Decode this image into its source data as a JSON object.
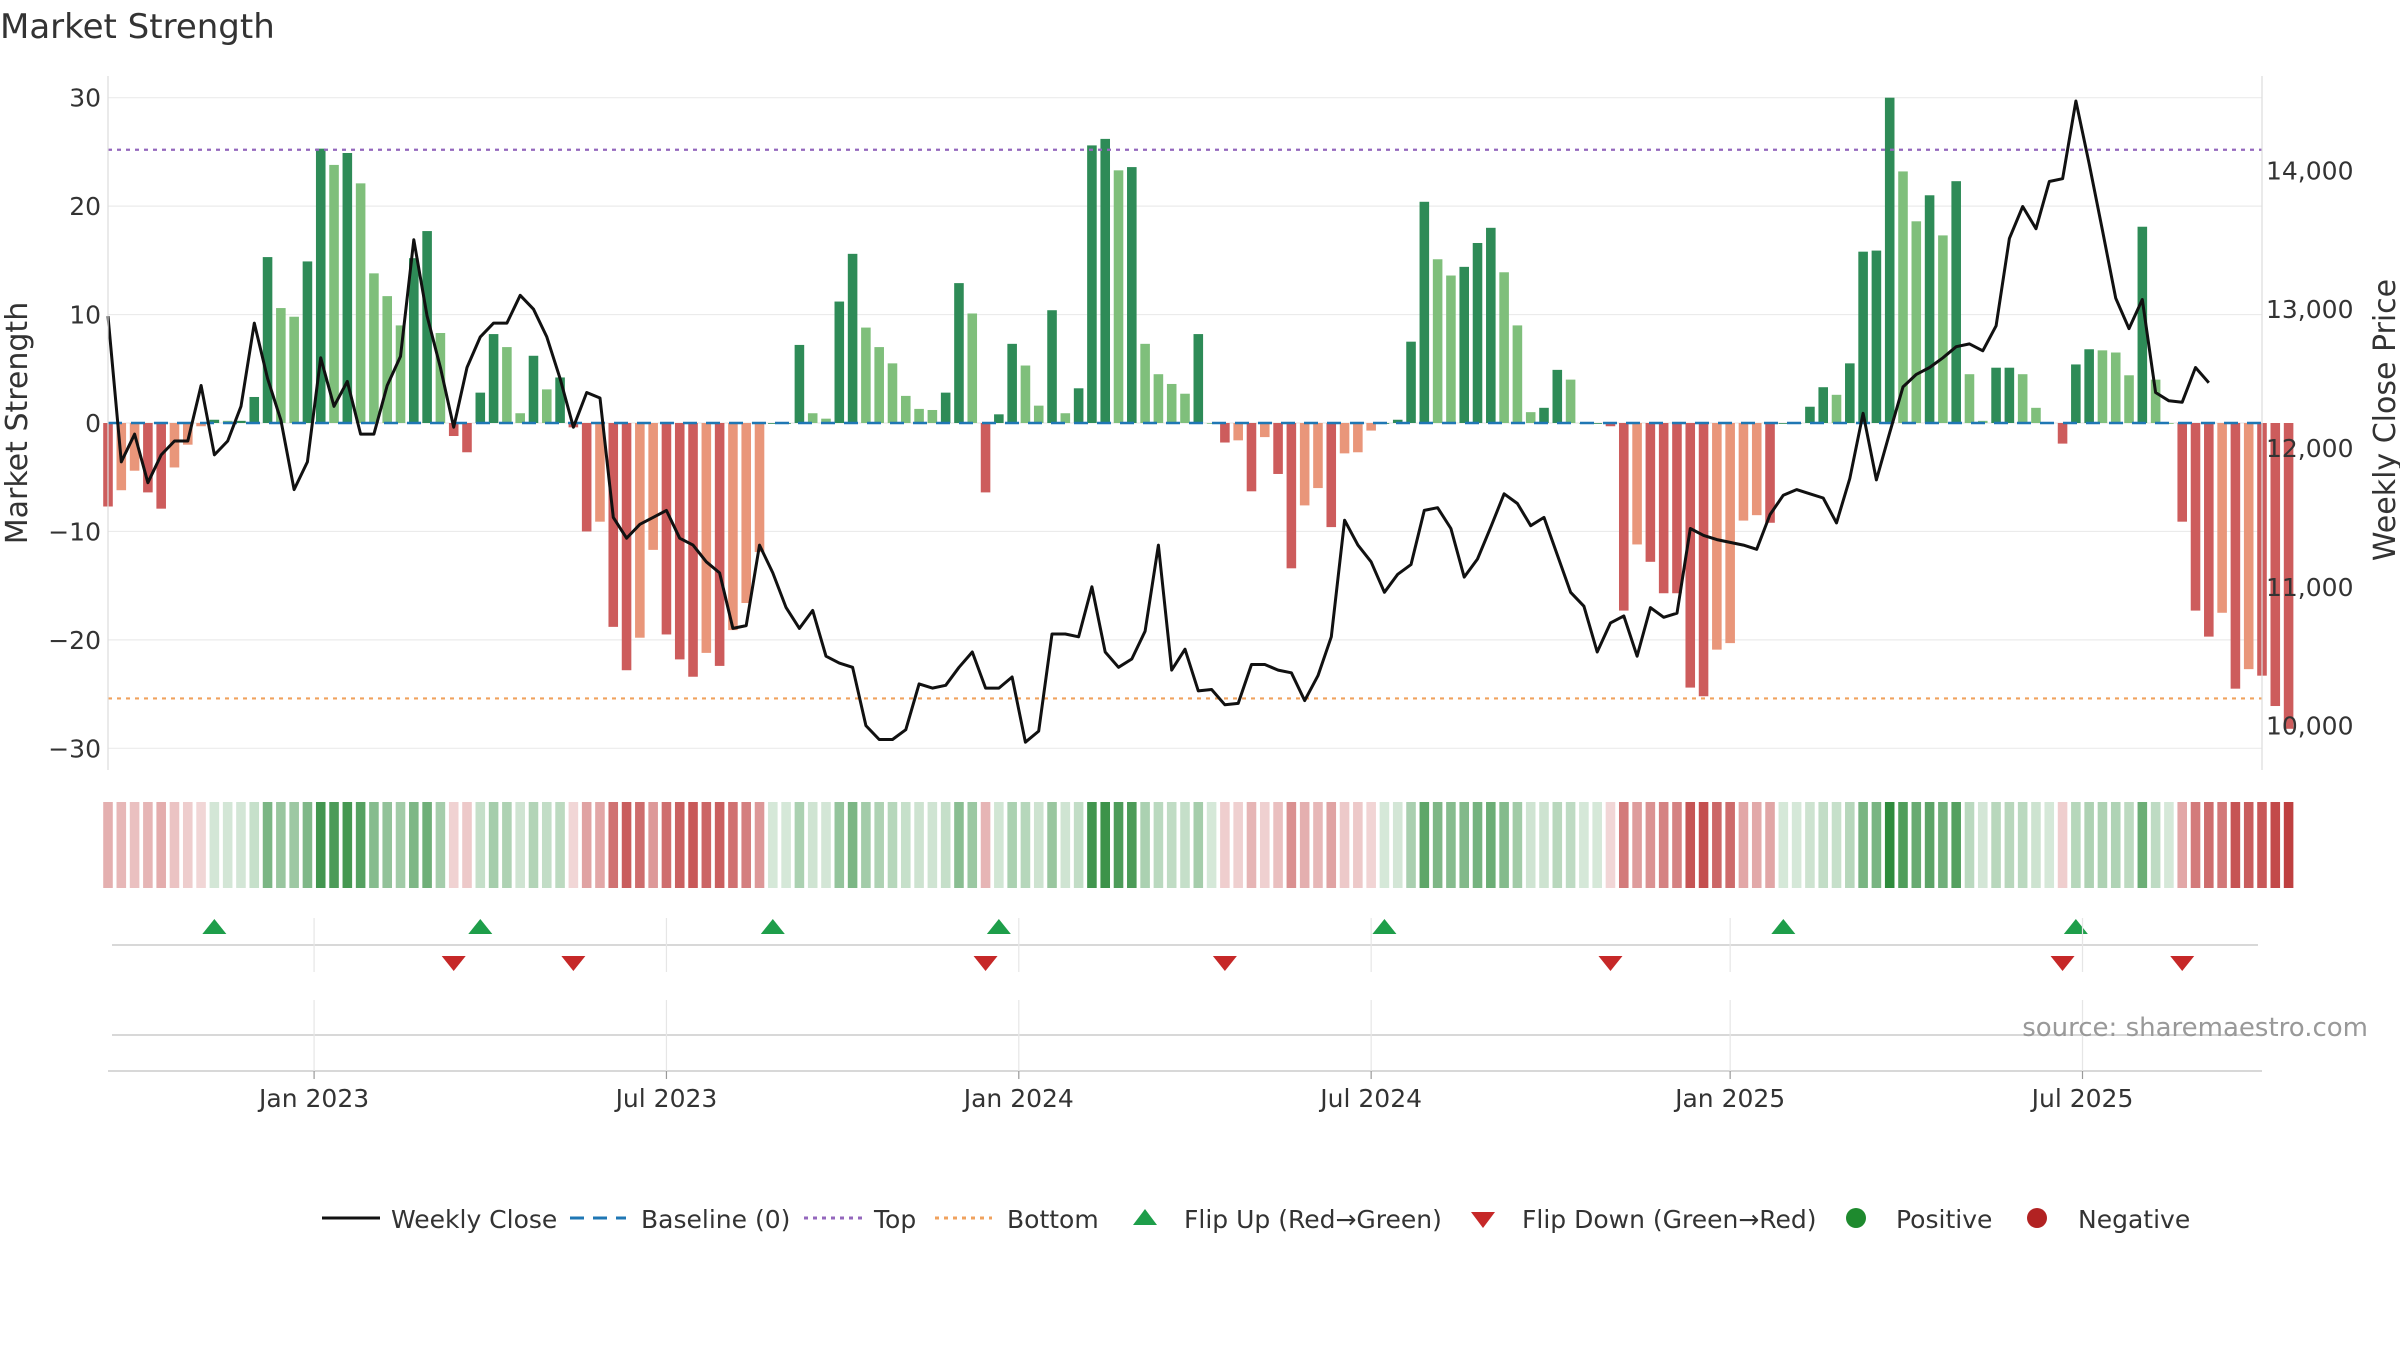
{
  "chart_data": {
    "type": "bar",
    "title": "Market Strength",
    "ylabel_left": "Market Strength",
    "ylabel_right": "Weekly Close Price",
    "source": "source: sharemaestro.com",
    "ylim_left": [
      -32,
      32
    ],
    "ylim_right": [
      9680,
      14680
    ],
    "yticks_left": [
      {
        "value": 30,
        "label": "30"
      },
      {
        "value": 20,
        "label": "20"
      },
      {
        "value": 10,
        "label": "10"
      },
      {
        "value": 0,
        "label": "0"
      },
      {
        "value": -10,
        "label": "−10"
      },
      {
        "value": -20,
        "label": "−20"
      },
      {
        "value": -30,
        "label": "−30"
      }
    ],
    "yticks_right": [
      {
        "value": 14000,
        "label": "14,000"
      },
      {
        "value": 13000,
        "label": "13,000"
      },
      {
        "value": 12000,
        "label": "12,000"
      },
      {
        "value": 11000,
        "label": "11,000"
      },
      {
        "value": 10000,
        "label": "10,000"
      }
    ],
    "week_range": [
      0,
      162
    ],
    "xticks": [
      {
        "week": 15.5,
        "label": "Jan 2023"
      },
      {
        "week": 42,
        "label": "Jul 2023"
      },
      {
        "week": 68.5,
        "label": "Jan 2024"
      },
      {
        "week": 95,
        "label": "Jul 2024"
      },
      {
        "week": 122,
        "label": "Jan 2025"
      },
      {
        "week": 148.5,
        "label": "Jul 2025"
      }
    ],
    "top_threshold": 25.2,
    "bottom_threshold": -25.4,
    "strength": [
      -7.7,
      -6.2,
      -4.4,
      -6.4,
      -7.9,
      -4.1,
      -2.0,
      -0.3,
      0.3,
      0.2,
      0.2,
      2.4,
      15.3,
      10.6,
      9.8,
      14.9,
      25.3,
      23.8,
      24.9,
      22.1,
      13.8,
      11.7,
      9.0,
      15.2,
      17.7,
      8.3,
      -1.2,
      -2.7,
      2.8,
      8.2,
      7.0,
      0.9,
      6.2,
      3.1,
      4.2,
      -0.4,
      -10.0,
      -9.1,
      -18.8,
      -22.8,
      -19.8,
      -11.7,
      -19.5,
      -21.8,
      -23.4,
      -21.2,
      -22.4,
      -19.1,
      -16.6,
      -11.9,
      0.0,
      0.0,
      7.2,
      0.9,
      0.4,
      11.2,
      15.6,
      8.8,
      7.0,
      5.5,
      2.5,
      1.3,
      1.2,
      2.8,
      12.9,
      10.1,
      -6.4,
      0.8,
      7.3,
      5.3,
      1.6,
      10.4,
      0.9,
      3.2,
      25.6,
      26.2,
      23.3,
      23.6,
      7.3,
      4.5,
      3.6,
      2.7,
      8.2,
      0.0,
      -1.8,
      -1.6,
      -6.3,
      -1.3,
      -4.7,
      -13.4,
      -7.6,
      -6.0,
      -9.6,
      -2.8,
      -2.7,
      -0.7,
      0.0,
      0.3,
      7.5,
      20.4,
      15.1,
      13.6,
      14.4,
      16.6,
      18.0,
      13.9,
      9.0,
      1.0,
      1.4,
      4.9,
      4.0,
      0.0,
      0.0,
      -0.3,
      -17.3,
      -11.2,
      -12.8,
      -15.7,
      -15.7,
      -24.4,
      -25.2,
      -20.9,
      -20.3,
      -9.0,
      -8.5,
      -9.2,
      0.0,
      0.0,
      1.5,
      3.3,
      2.6,
      5.5,
      15.8,
      15.9,
      30.0,
      23.2,
      18.6,
      21.0,
      17.3,
      22.3,
      4.5,
      0.2,
      5.1,
      5.1,
      4.5,
      1.4,
      0.0,
      -1.9,
      5.4,
      6.8,
      6.7,
      6.5,
      4.4,
      18.1,
      4.0,
      0.0,
      -9.1,
      -17.3,
      -19.7,
      -17.5,
      -24.5,
      -22.7,
      -23.3,
      -26.1,
      -28.2
    ],
    "weekly_close": [
      12950,
      11900,
      12100,
      11750,
      11950,
      12050,
      12050,
      12450,
      11950,
      12050,
      12300,
      12900,
      12500,
      12200,
      11700,
      11900,
      12650,
      12300,
      12480,
      12100,
      12100,
      12450,
      12660,
      13500,
      12950,
      12580,
      12150,
      12580,
      12800,
      12900,
      12900,
      13100,
      13000,
      12800,
      12500,
      12150,
      12400,
      12360,
      11500,
      11350,
      11450,
      11500,
      11550,
      11350,
      11300,
      11180,
      11100,
      10700,
      10720,
      11300,
      11100,
      10850,
      10700,
      10830,
      10500,
      10450,
      10420,
      10000,
      9900,
      9900,
      9970,
      10300,
      10270,
      10290,
      10420,
      10530,
      10270,
      10270,
      10350,
      9880,
      9960,
      10660,
      10660,
      10640,
      11000,
      10530,
      10420,
      10480,
      10680,
      11300,
      10400,
      10550,
      10250,
      10260,
      10150,
      10160,
      10440,
      10440,
      10400,
      10380,
      10180,
      10360,
      10640,
      11480,
      11300,
      11180,
      10960,
      11090,
      11160,
      11550,
      11570,
      11420,
      11070,
      11200,
      11430,
      11670,
      11600,
      11440,
      11500,
      11230,
      10960,
      10860,
      10530,
      10740,
      10790,
      10500,
      10850,
      10780,
      10810,
      11420,
      11370,
      11340,
      11320,
      11300,
      11270,
      11520,
      11660,
      11700,
      11670,
      11640,
      11460,
      11780,
      12250,
      11770,
      12110,
      12440,
      12530,
      12580,
      12650,
      12730,
      12750,
      12700,
      12880,
      13510,
      13740,
      13580,
      13920,
      13940,
      14500,
      14050,
      13570,
      13080,
      12860,
      13070,
      12400,
      12340,
      12330,
      12580,
      12470
    ]
  }
}
